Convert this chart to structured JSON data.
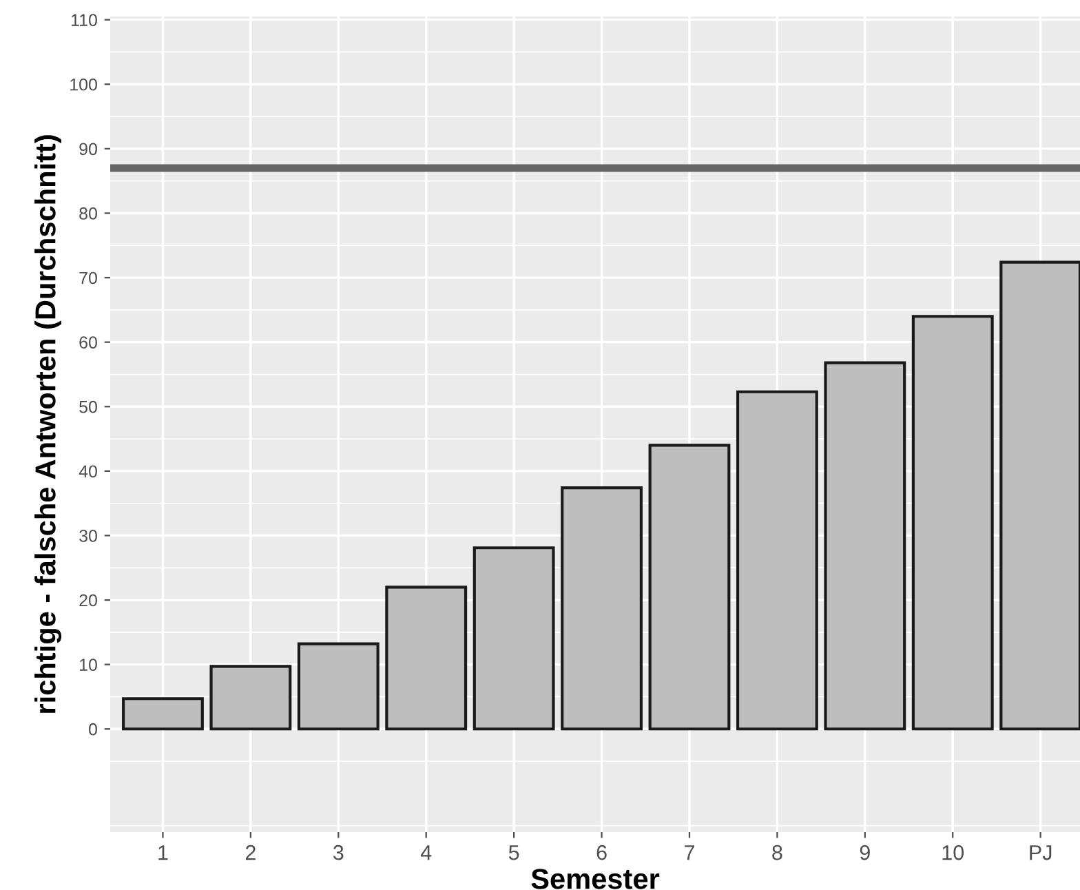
{
  "chart_data": {
    "type": "bar",
    "xlabel": "Semester",
    "ylabel": "richtige - falsche Antworten (Durchschnitt)",
    "categories": [
      "1",
      "2",
      "3",
      "4",
      "5",
      "6",
      "7",
      "8",
      "9",
      "10",
      "PJ"
    ],
    "series": [
      {
        "color": "#bebebe",
        "values": [
          4.7,
          9.7,
          13.2,
          22,
          28.1,
          37.4,
          44,
          52.3,
          56.8,
          64,
          72.4
        ]
      }
    ],
    "ylim": [
      -16,
      110.5
    ],
    "yticks": [
      0,
      10,
      20,
      30,
      40,
      50,
      60,
      70,
      80,
      90,
      100,
      110
    ],
    "ref_lines": [
      {
        "axis": "y",
        "value": 87,
        "color": "#666666",
        "line_style": "solid"
      }
    ],
    "grid": true,
    "legend": false
  }
}
